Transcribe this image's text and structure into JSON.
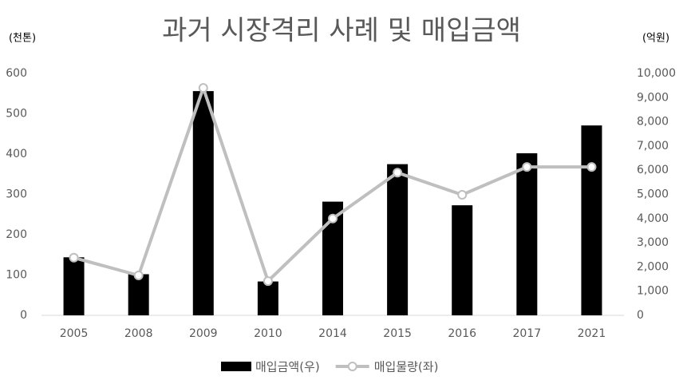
{
  "chart_data": {
    "type": "bar-line",
    "title": "과거 시장격리 사례 및 매입금액",
    "y_label": "(천톤)",
    "y2_label": "(억원)",
    "categories": [
      "2005",
      "2008",
      "2009",
      "2010",
      "2014",
      "2015",
      "2016",
      "2017",
      "2021"
    ],
    "series": [
      {
        "name": "매입금액(우)",
        "type": "bar",
        "axis": "y2",
        "color": "#000000",
        "values": [
          2400,
          1700,
          9270,
          1400,
          4700,
          6250,
          4550,
          6700,
          7850
        ]
      },
      {
        "name": "매입물량(좌)",
        "type": "line",
        "axis": "y",
        "color": "#bfbfbf",
        "values": [
          143,
          99,
          564,
          85,
          240,
          354,
          299,
          368,
          368
        ]
      }
    ],
    "ylim": [
      0,
      600
    ],
    "yticks": [
      0,
      100,
      200,
      300,
      400,
      500,
      600
    ],
    "y2lim": [
      0,
      10000
    ],
    "y2ticks": [
      0,
      {
        "value": 1000,
        "label": "1,000"
      },
      {
        "value": 2000,
        "label": "2,000"
      },
      {
        "value": 3000,
        "label": "3,000"
      },
      {
        "value": 4000,
        "label": "4,000"
      },
      {
        "value": 5000,
        "label": "5,000"
      },
      {
        "value": 6000,
        "label": "6,000"
      },
      {
        "value": 7000,
        "label": "7,000"
      },
      {
        "value": 8000,
        "label": "8,000"
      },
      {
        "value": 9000,
        "label": "9,000"
      },
      {
        "value": 10000,
        "label": "10,000"
      }
    ],
    "grid": false,
    "legend": "bottom"
  }
}
